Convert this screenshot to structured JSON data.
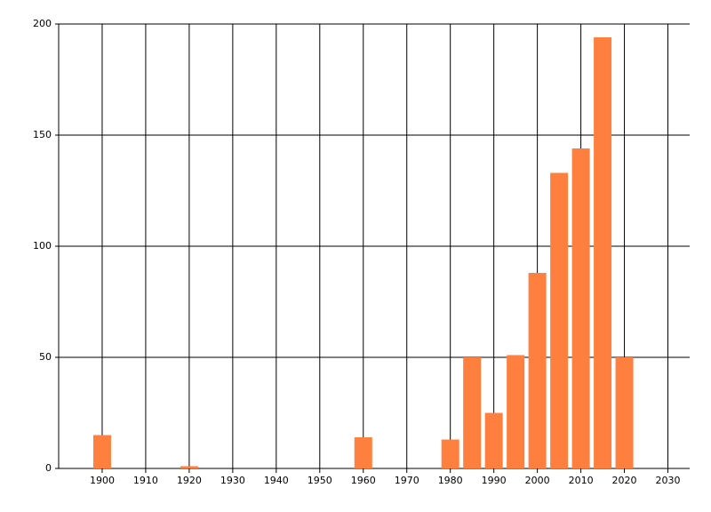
{
  "chart_data": {
    "type": "bar",
    "x": [
      1900,
      1920,
      1960,
      1980,
      1985,
      1990,
      1995,
      2000,
      2005,
      2010,
      2015,
      2020
    ],
    "values": [
      15,
      1,
      14,
      13,
      50,
      25,
      51,
      88,
      133,
      144,
      194,
      50
    ],
    "color": "#ff7f3f",
    "xlim": [
      1890,
      2035
    ],
    "xticks": [
      1900,
      1910,
      1920,
      1930,
      1940,
      1950,
      1960,
      1970,
      1980,
      1990,
      2000,
      2010,
      2020,
      2030
    ],
    "ylim": [
      0,
      200
    ],
    "yticks": [
      0,
      50,
      100,
      150,
      200
    ],
    "grid": true
  }
}
